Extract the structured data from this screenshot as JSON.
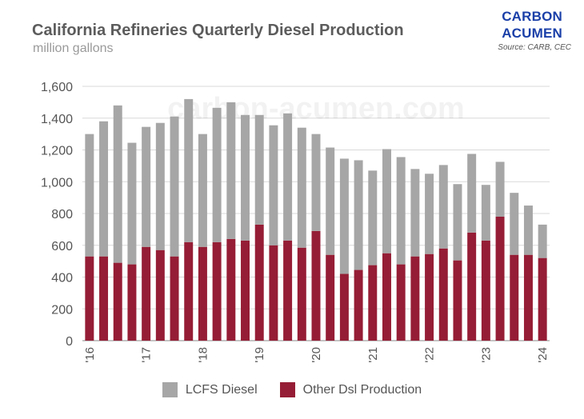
{
  "title": "California Refineries Quarterly Diesel Production",
  "subtitle": "million gallons",
  "brand": {
    "line1": "CARBON",
    "line2": "ACUMEN",
    "source": "Source: CARB, CEC"
  },
  "watermark": "carbon-acumen.com",
  "colors": {
    "lcfs": "#a6a6a6",
    "other": "#951d35",
    "grid": "#d9d9d9",
    "axis": "#555555"
  },
  "chart_data": {
    "type": "bar",
    "stacked": true,
    "ylim": [
      0,
      1600
    ],
    "yticks": [
      0,
      200,
      400,
      600,
      800,
      1000,
      1200,
      1400,
      1600
    ],
    "ytick_labels": [
      "0",
      "200",
      "400",
      "600",
      "800",
      "1,000",
      "1,200",
      "1,400",
      "1,600"
    ],
    "x_ticks": [
      {
        "label": "'16",
        "index": 0
      },
      {
        "label": "'17",
        "index": 4
      },
      {
        "label": "'18",
        "index": 8
      },
      {
        "label": "'19",
        "index": 12
      },
      {
        "label": "'20",
        "index": 16
      },
      {
        "label": "'21",
        "index": 20
      },
      {
        "label": "'22",
        "index": 24
      },
      {
        "label": "'23",
        "index": 28
      },
      {
        "label": "'24",
        "index": 32
      }
    ],
    "categories": [
      "2016 Q1",
      "2016 Q2",
      "2016 Q3",
      "2016 Q4",
      "2017 Q1",
      "2017 Q2",
      "2017 Q3",
      "2017 Q4",
      "2018 Q1",
      "2018 Q2",
      "2018 Q3",
      "2018 Q4",
      "2019 Q1",
      "2019 Q2",
      "2019 Q3",
      "2019 Q4",
      "2020 Q1",
      "2020 Q2",
      "2020 Q3",
      "2020 Q4",
      "2021 Q1",
      "2021 Q2",
      "2021 Q3",
      "2021 Q4",
      "2022 Q1",
      "2022 Q2",
      "2022 Q3",
      "2022 Q4",
      "2023 Q1",
      "2023 Q2",
      "2023 Q3",
      "2023 Q4",
      "2024 Q1"
    ],
    "series": [
      {
        "name": "Other Dsl Production",
        "color": "#951d35",
        "values": [
          530,
          530,
          490,
          480,
          590,
          570,
          530,
          620,
          590,
          620,
          640,
          630,
          730,
          600,
          630,
          585,
          690,
          540,
          420,
          445,
          475,
          550,
          480,
          530,
          545,
          580,
          505,
          680,
          630,
          780,
          540,
          540,
          520
        ]
      },
      {
        "name": "LCFS Diesel",
        "color": "#a6a6a6",
        "values": [
          770,
          850,
          990,
          765,
          755,
          800,
          880,
          900,
          710,
          845,
          860,
          790,
          690,
          755,
          800,
          755,
          610,
          675,
          725,
          690,
          595,
          655,
          675,
          550,
          505,
          525,
          480,
          495,
          350,
          345,
          390,
          310,
          210
        ]
      }
    ],
    "legend": [
      {
        "name": "LCFS Diesel",
        "color": "#a6a6a6"
      },
      {
        "name": "Other Dsl Production",
        "color": "#951d35"
      }
    ]
  }
}
